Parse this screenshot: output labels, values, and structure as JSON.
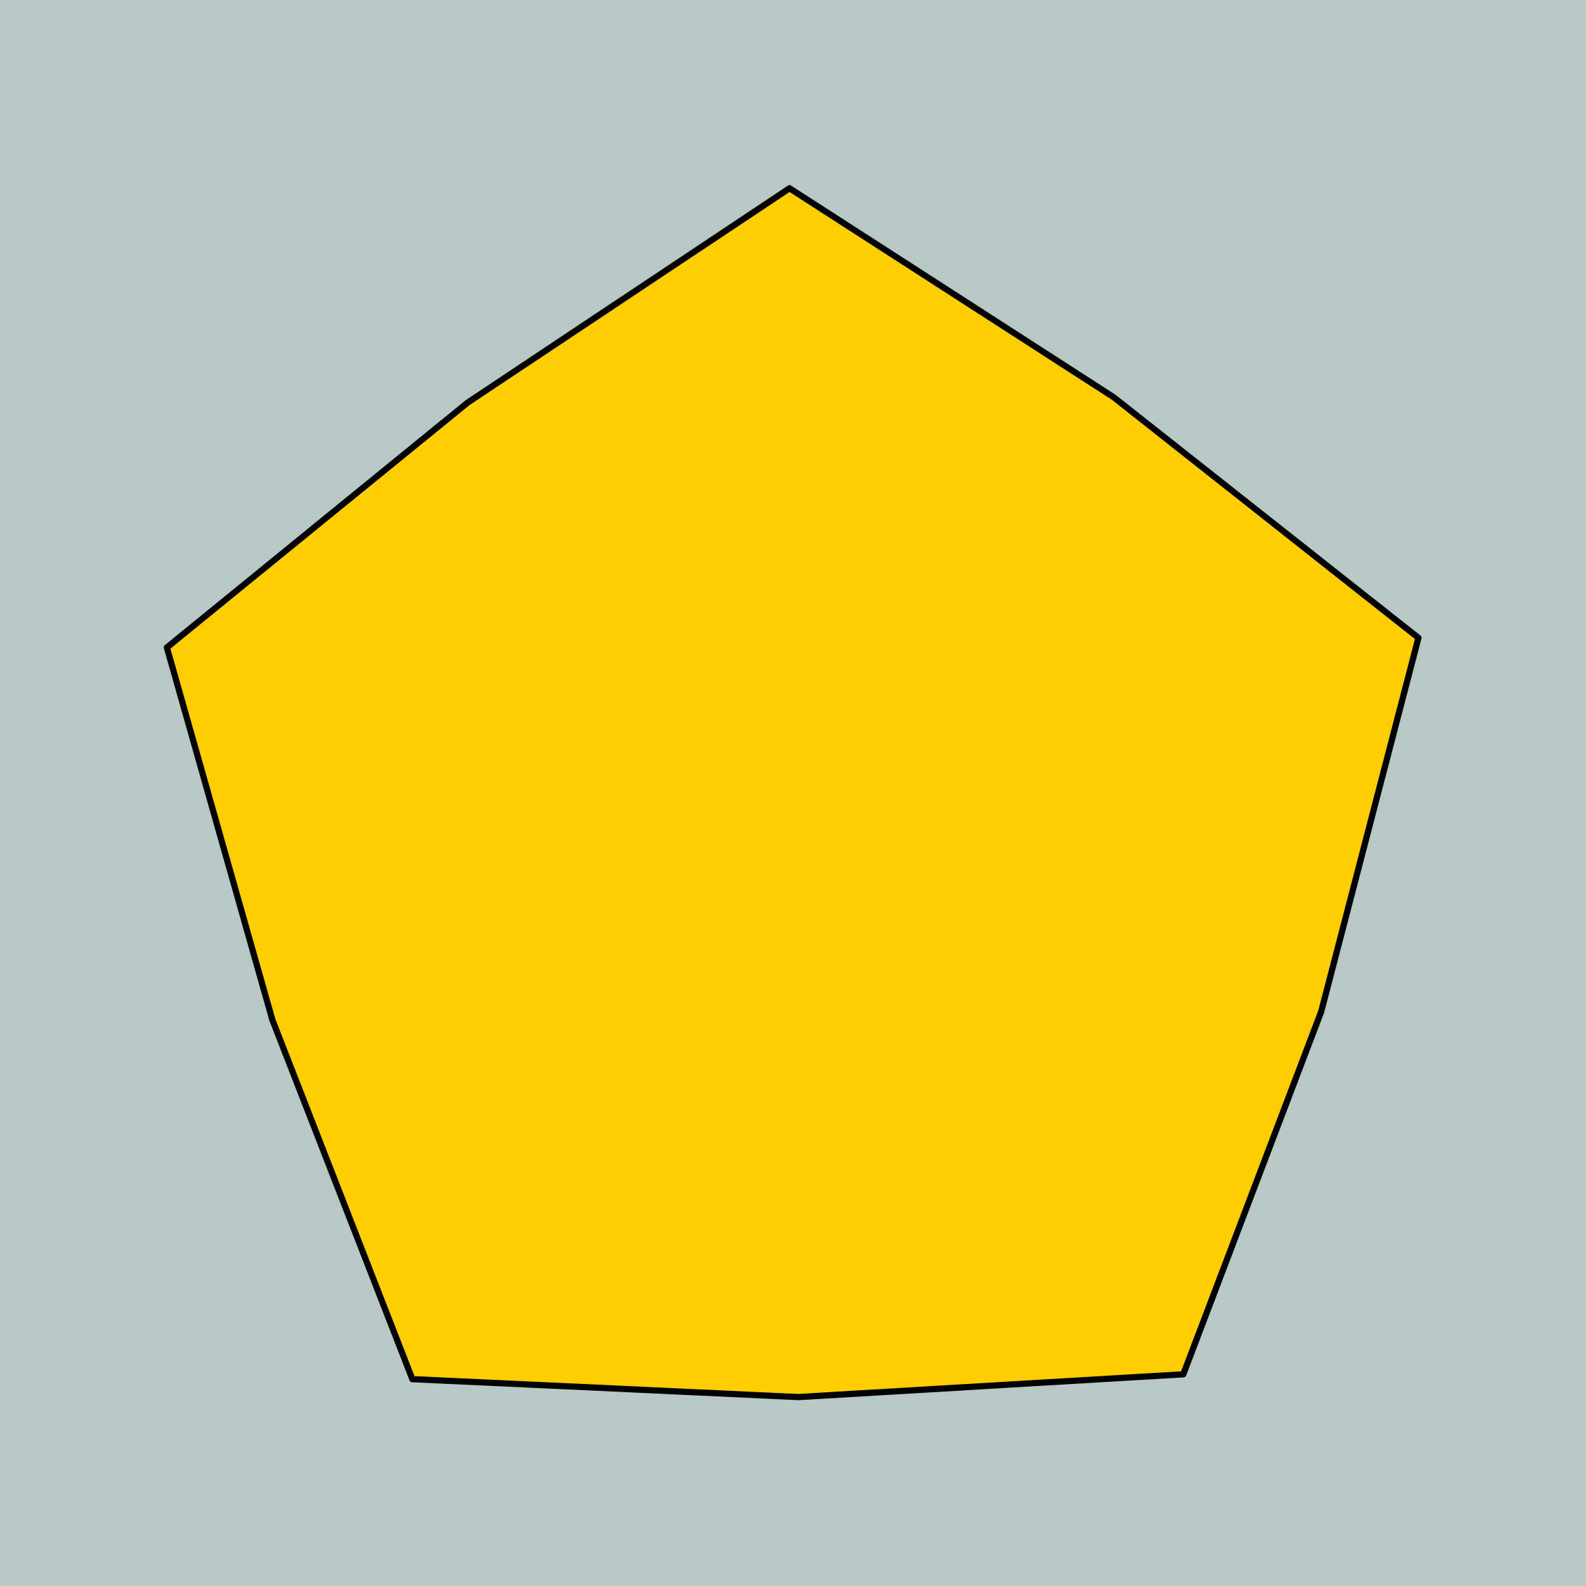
{
  "figure": {
    "description_shape": "polygon",
    "vertex_count": 10
  },
  "colors": {
    "background": "#b8c8c4",
    "shape_fill": "#ffce00",
    "shape_stroke": "#000000"
  }
}
